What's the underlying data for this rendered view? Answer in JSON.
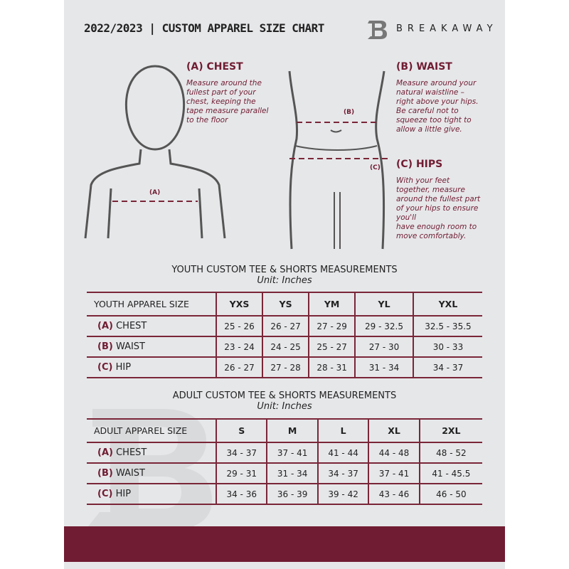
{
  "header": {
    "title": "2022/2023  |  CUSTOM APPAREL SIZE CHART",
    "brand": "BREAKAWAY"
  },
  "guide": {
    "chest": {
      "title": "(A) CHEST",
      "text": "Measure around the\nfullest part of your\nchest, keeping the\ntape measure parallel\nto the floor",
      "marker": "(A)"
    },
    "waist": {
      "title": "(B) WAIST",
      "text": "Measure around your\nnatural waistline –\nright above your hips.\nBe careful not to\nsqueeze too tight to\nallow a little give.",
      "marker": "(B)"
    },
    "hips": {
      "title": "(C) HIPS",
      "text": "With your feet\ntogether, measure\naround the fullest part\nof your hips to ensure\nyou'll\nhave enough room to\nmove comfortably.",
      "marker": "(C)"
    }
  },
  "youth": {
    "title": "YOUTH CUSTOM TEE & SHORTS MEASUREMENTS",
    "unit": "Unit: Inches",
    "size_label": "YOUTH APPAREL SIZE",
    "sizes": [
      "YXS",
      "YS",
      "YM",
      "YL",
      "YXL"
    ],
    "rows": [
      {
        "code": "(A)",
        "name": "CHEST",
        "values": [
          "25 - 26",
          "26 - 27",
          "27 - 29",
          "29 - 32.5",
          "32.5 - 35.5"
        ]
      },
      {
        "code": "(B)",
        "name": "WAIST",
        "values": [
          "23 - 24",
          "24 - 25",
          "25 - 27",
          "27 - 30",
          "30 - 33"
        ]
      },
      {
        "code": "(C)",
        "name": "HIP",
        "values": [
          "26 - 27",
          "27 - 28",
          "28 - 31",
          "31 - 34",
          "34 - 37"
        ]
      }
    ]
  },
  "adult": {
    "title": "ADULT CUSTOM TEE & SHORTS MEASUREMENTS",
    "unit": "Unit: Inches",
    "size_label": "ADULT APPAREL SIZE",
    "sizes": [
      "S",
      "M",
      "L",
      "XL",
      "2XL"
    ],
    "rows": [
      {
        "code": "(A)",
        "name": "CHEST",
        "values": [
          "34 - 37",
          "37 - 41",
          "41 - 44",
          "44 - 48",
          "48 - 52"
        ]
      },
      {
        "code": "(B)",
        "name": "WAIST",
        "values": [
          "29 - 31",
          "31 - 34",
          "34 - 37",
          "37 - 41",
          "41 - 45.5"
        ]
      },
      {
        "code": "(C)",
        "name": "HIP",
        "values": [
          "34 - 36",
          "36 - 39",
          "39 - 42",
          "43 - 46",
          "46 - 50"
        ]
      }
    ]
  },
  "colors": {
    "accent": "#701c32",
    "background": "#e6e7e9"
  }
}
